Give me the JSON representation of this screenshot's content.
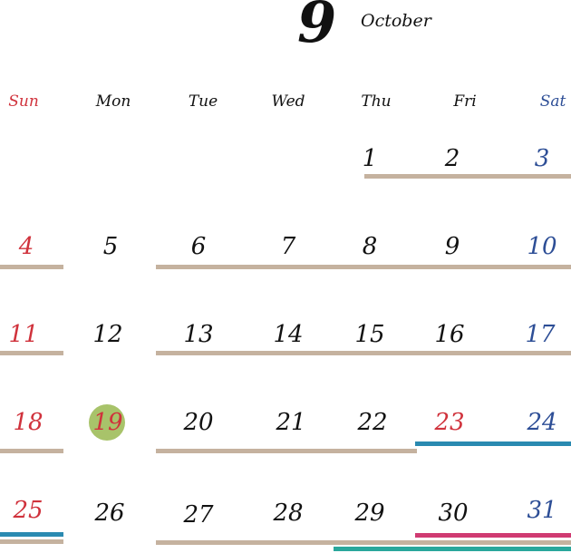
{
  "header": {
    "month_number": "9",
    "month_name": "October"
  },
  "colors": {
    "text": "#111111",
    "holiday_red": "#d0323c",
    "saturday_blue": "#2d4e96",
    "bar_tan": "#c5b29f",
    "bar_blue": "#2a8ab1",
    "bar_pink": "#d03b72",
    "bar_teal": "#2aa79c",
    "marker_green": "#a8c36a"
  },
  "weekdays": [
    "Sun",
    "Mon",
    "Tue",
    "Wed",
    "Thu",
    "Fri",
    "Sat"
  ],
  "weeks": [
    [
      "",
      "",
      "",
      "",
      "1",
      "2",
      "3"
    ],
    [
      "4",
      "5",
      "6",
      "7",
      "8",
      "9",
      "10"
    ],
    [
      "11",
      "12",
      "13",
      "14",
      "15",
      "16",
      "17"
    ],
    [
      "18",
      "19",
      "20",
      "21",
      "22",
      "23",
      "24"
    ],
    [
      "25",
      "26",
      "27",
      "28",
      "29",
      "30",
      "31"
    ]
  ],
  "highlighted_day": "19"
}
